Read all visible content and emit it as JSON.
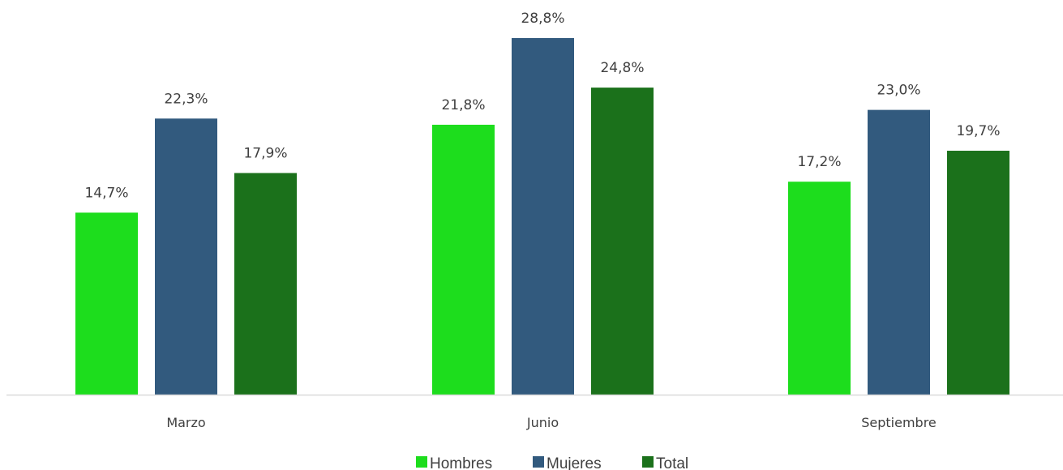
{
  "chart_data": {
    "type": "bar",
    "title": "",
    "xlabel": "",
    "ylabel": "",
    "ylim": [
      0,
      30
    ],
    "grid": false,
    "legend_position": "bottom",
    "categories": [
      "Marzo",
      "Junio",
      "Septiembre"
    ],
    "series": [
      {
        "name": "Hombres",
        "color": "#1ddd1d",
        "values": [
          14.7,
          21.8,
          17.2
        ],
        "labels": [
          "14,7%",
          "21,8%",
          "17,2%"
        ]
      },
      {
        "name": "Mujeres",
        "color": "#325a7e",
        "values": [
          22.3,
          28.8,
          23.0
        ],
        "labels": [
          "22,3%",
          "28,8%",
          "23,0%"
        ]
      },
      {
        "name": "Total",
        "color": "#1b711b",
        "values": [
          17.9,
          24.8,
          19.7
        ],
        "labels": [
          "17,9%",
          "24,8%",
          "19,7%"
        ]
      }
    ],
    "axis_color": "#d9d9d9",
    "text_color": "#404040"
  }
}
